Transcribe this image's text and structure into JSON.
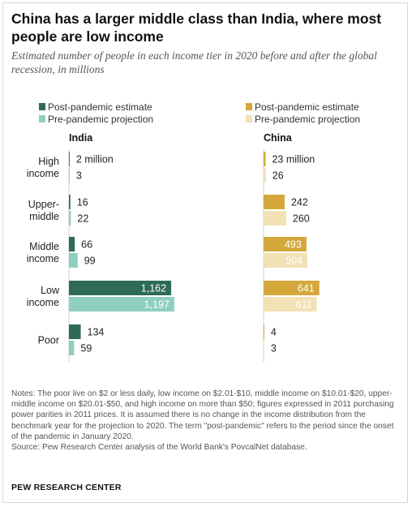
{
  "title": "China has a larger middle class than India, where most people are low income",
  "subtitle": "Estimated number of people in each income tier in 2020 before and after the global recession, in millions",
  "chart_data": [
    {
      "type": "bar",
      "orientation": "horizontal",
      "title": "India",
      "categories": [
        "High income",
        "Upper-middle",
        "Middle income",
        "Low income",
        "Poor"
      ],
      "series": [
        {
          "name": "Post-pandemic estimate",
          "values": [
            2,
            16,
            66,
            1162,
            134
          ],
          "labels": [
            "2 million",
            "16",
            "66",
            "1,162",
            "134"
          ],
          "color": "#2e6b57"
        },
        {
          "name": "Pre-pandemic projection",
          "values": [
            3,
            22,
            99,
            1197,
            59
          ],
          "labels": [
            "3",
            "22",
            "99",
            "1,197",
            "59"
          ],
          "color": "#8fcfbf"
        }
      ],
      "legend_position": "top"
    },
    {
      "type": "bar",
      "orientation": "horizontal",
      "title": "China",
      "categories": [
        "High income",
        "Upper-middle",
        "Middle income",
        "Low income",
        "Poor"
      ],
      "series": [
        {
          "name": "Post-pandemic estimate",
          "values": [
            23,
            242,
            493,
            641,
            4
          ],
          "labels": [
            "23 million",
            "242",
            "493",
            "641",
            "4"
          ],
          "color": "#d4a83a"
        },
        {
          "name": "Pre-pandemic projection",
          "values": [
            26,
            260,
            504,
            611,
            3
          ],
          "labels": [
            "26",
            "260",
            "504",
            "611",
            "3"
          ],
          "color": "#f1e1b4"
        }
      ],
      "legend_position": "top"
    }
  ],
  "category_labels": [
    [
      "High",
      "income"
    ],
    [
      "Upper-",
      "middle"
    ],
    [
      "Middle",
      "income"
    ],
    [
      "Low",
      "income"
    ],
    [
      "Poor"
    ]
  ],
  "notes": [
    "Notes: The poor live on $2 or less daily, low income on $2.01-$10, middle income on $10.01-$20, upper-middle income on $20.01-$50, and high income on more than $50; figures expressed in 2011 purchasing power parities in 2011 prices. It is assumed there is no change in the income distribution from the benchmark year for the projection to 2020. The term \"post-pandemic\" refers to the period since the onset of the pandemic in January 2020.",
    "Source: Pew Research Center analysis of the World Bank's PovcalNet database."
  ],
  "organization": "PEW RESEARCH CENTER"
}
